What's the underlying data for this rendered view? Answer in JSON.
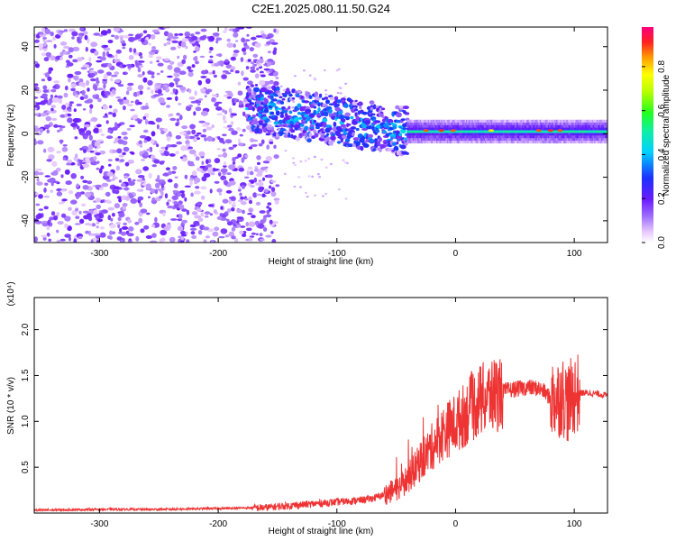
{
  "title": "C2E1.2025.080.11.50.G24",
  "chart_data": [
    {
      "type": "heatmap",
      "title": "C2E1.2025.080.11.50.G24",
      "xlabel": "Height of straight line (km)",
      "ylabel": "Frequency (Hz)",
      "xlim": [
        -355,
        128
      ],
      "ylim": [
        -50,
        49
      ],
      "x_ticks": [
        -300,
        -200,
        -100,
        0,
        100
      ],
      "y_ticks": [
        -40,
        -20,
        0,
        20,
        40
      ],
      "colorbar": {
        "label": "Normalized spectral amplitude",
        "range": [
          0,
          0.98
        ],
        "ticks": [
          0.0,
          0.2,
          0.4,
          0.6,
          0.8
        ],
        "colormap": "rainbow"
      },
      "grid": false,
      "features": [
        {
          "x_range": [
            -355,
            -150
          ],
          "frequency_range": [
            -50,
            49
          ],
          "amplitude": "0.02-0.20 (noise)"
        },
        {
          "x_range": [
            -150,
            -40
          ],
          "frequency_center_from": 10,
          "frequency_center_to": 0,
          "amplitude": "0.2-0.5"
        },
        {
          "x_range": [
            -40,
            128
          ],
          "frequency_center": 1,
          "amplitude": "0.45-0.9"
        }
      ]
    },
    {
      "type": "line",
      "xlabel": "Height of straight line (km)",
      "ylabel": "SNR (10 * v/v)",
      "y_multiplier": "(x10⁴)",
      "xlim": [
        -355,
        128
      ],
      "ylim": [
        0,
        2.35
      ],
      "x_ticks": [
        -300,
        -200,
        -100,
        0,
        100
      ],
      "y_ticks": [
        0.5,
        1.0,
        1.5,
        2.0
      ],
      "y_tick_labels": [
        "0.5",
        "1.0",
        "1.5",
        "2.0"
      ],
      "color": "#ff3333",
      "grid": false,
      "series": [
        {
          "x": [
            -355,
            -300,
            -250,
            -200,
            -160,
            -140,
            -120,
            -100,
            -80,
            -70,
            -60,
            -50,
            -40,
            -30,
            -20,
            -10,
            0,
            10,
            20,
            30,
            40,
            50,
            60,
            70,
            75,
            80,
            85,
            90,
            95,
            100,
            105,
            110,
            120,
            128
          ],
          "values": [
            0.03,
            0.04,
            0.04,
            0.05,
            0.06,
            0.08,
            0.1,
            0.12,
            0.14,
            0.16,
            0.2,
            0.26,
            0.38,
            0.55,
            0.72,
            0.88,
            0.98,
            1.1,
            1.22,
            1.28,
            1.33,
            1.35,
            1.37,
            1.36,
            1.32,
            1.25,
            1.25,
            1.28,
            1.2,
            1.3,
            1.31,
            1.31,
            1.3,
            1.28
          ]
        }
      ]
    }
  ]
}
